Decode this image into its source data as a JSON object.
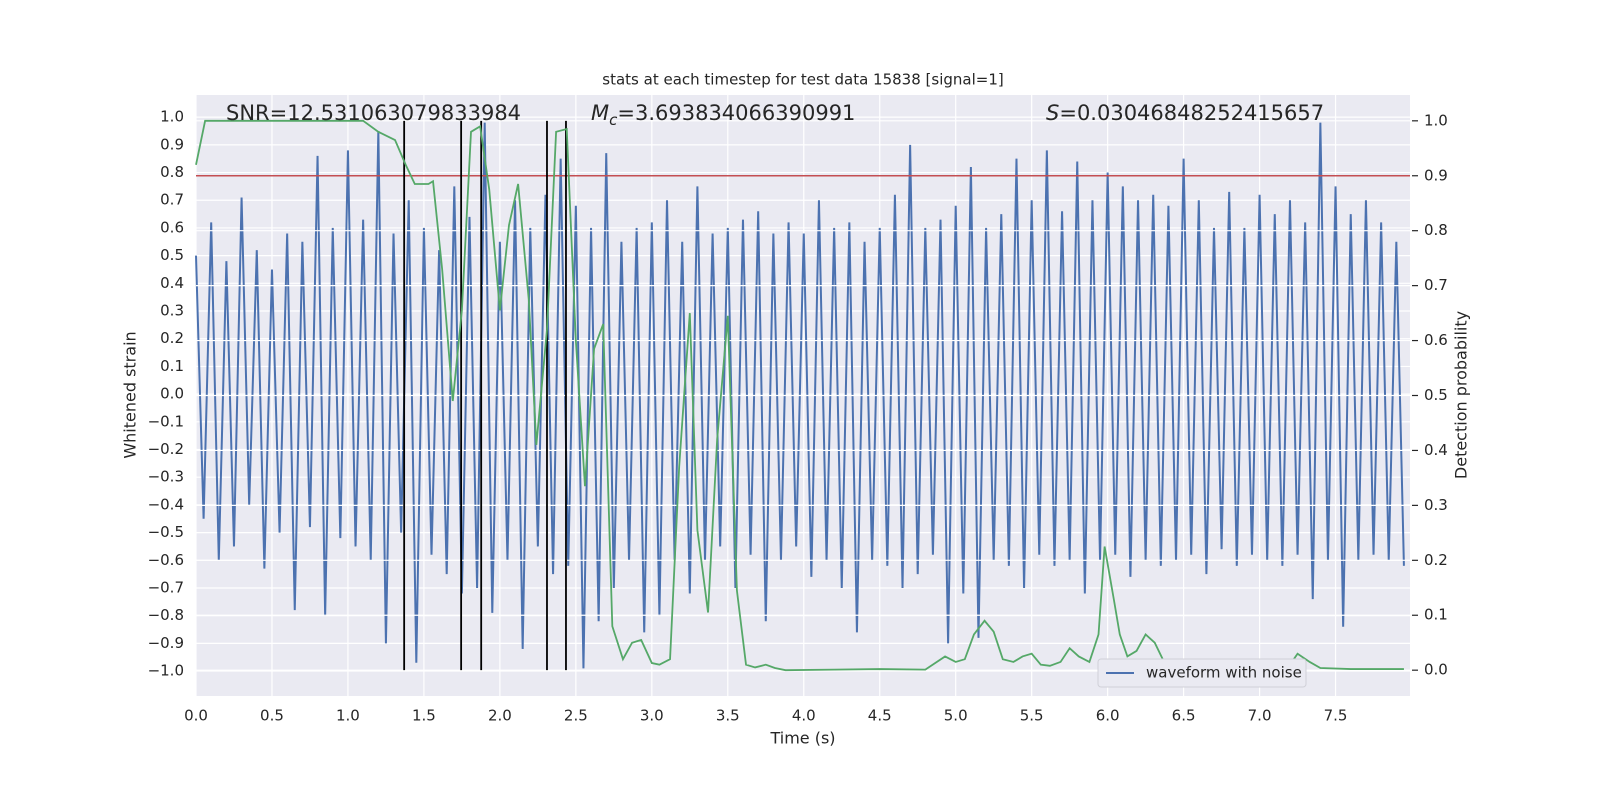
{
  "chart_data": {
    "type": "line",
    "title": "stats at each timestep for test data 15838 [signal=1]",
    "x_label": "Time (s)",
    "y_label": "Whitened strain",
    "y2_label": "Detection probability",
    "annotations": [
      {
        "text": "SNR=12.531063079833984"
      },
      {
        "symbol": "M",
        "subscript": "c",
        "text": "=3.693834066390991"
      },
      {
        "symbol": "S",
        "text": "=0.03046848252415657"
      }
    ],
    "xlim": [
      0,
      7.99
    ],
    "ylim": [
      -1.09,
      1.08
    ],
    "y2lim": [
      -0.047,
      1.047
    ],
    "xticks": [
      {
        "value": 0,
        "label": "0.0"
      },
      0.5,
      {
        "value": 1,
        "label": "1.0"
      },
      1.5,
      {
        "value": 2,
        "label": "2.0"
      },
      2.5,
      {
        "value": 3,
        "label": "3.0"
      },
      3.5,
      {
        "value": 4,
        "label": "4.0"
      },
      4.5,
      {
        "value": 5,
        "label": "5.0"
      },
      5.5,
      {
        "value": 6,
        "label": "6.0"
      },
      6.5,
      {
        "value": 7,
        "label": "7.0"
      },
      7.5
    ],
    "yticks": [
      {
        "value": -1,
        "label": "−1.0"
      },
      {
        "value": -0.9,
        "label": "−0.9"
      },
      {
        "value": -0.8,
        "label": "−0.8"
      },
      {
        "value": -0.7,
        "label": "−0.7"
      },
      {
        "value": -0.6,
        "label": "−0.6"
      },
      {
        "value": -0.5,
        "label": "−0.5"
      },
      {
        "value": -0.4,
        "label": "−0.4"
      },
      {
        "value": -0.3,
        "label": "−0.3"
      },
      {
        "value": -0.2,
        "label": "−0.2"
      },
      {
        "value": -0.1,
        "label": "−0.1"
      },
      {
        "value": 0,
        "label": "0.0"
      },
      0.1,
      0.2,
      0.3,
      0.4,
      0.5,
      0.6,
      0.7,
      0.8,
      0.9,
      {
        "value": 1,
        "label": "1.0"
      }
    ],
    "y2ticks": [
      {
        "value": 0,
        "label": "0.0"
      },
      0.1,
      0.2,
      0.3,
      0.4,
      0.5,
      0.6,
      0.7,
      0.8,
      0.9,
      {
        "value": 1,
        "label": "1.0"
      }
    ],
    "grid": true,
    "legend": "lower right",
    "series": [
      {
        "name": "waveform with noise",
        "color": "#4c72b0",
        "x": [
          0,
          0.05,
          0.1,
          0.15,
          0.2,
          0.25,
          0.3,
          0.35,
          0.4,
          0.45,
          0.5,
          0.55,
          0.6,
          0.65,
          0.7,
          0.75,
          0.8,
          0.85,
          0.9,
          0.95,
          1,
          1.05,
          1.1,
          1.15,
          1.2,
          1.25,
          1.3,
          1.35,
          1.4,
          1.45,
          1.5,
          1.55,
          1.6,
          1.65,
          1.7,
          1.75,
          1.8,
          1.85,
          1.9,
          1.95,
          2,
          2.05,
          2.1,
          2.15,
          2.2,
          2.25,
          2.3,
          2.35,
          2.4,
          2.45,
          2.5,
          2.55,
          2.6,
          2.65,
          2.7,
          2.75,
          2.8,
          2.85,
          2.9,
          2.95,
          3,
          3.05,
          3.1,
          3.15,
          3.2,
          3.25,
          3.3,
          3.35,
          3.4,
          3.45,
          3.5,
          3.55,
          3.6,
          3.65,
          3.7,
          3.75,
          3.8,
          3.85,
          3.9,
          3.95,
          4,
          4.05,
          4.1,
          4.15,
          4.2,
          4.25,
          4.3,
          4.35,
          4.4,
          4.45,
          4.5,
          4.55,
          4.6,
          4.65,
          4.7,
          4.75,
          4.8,
          4.85,
          4.9,
          4.95,
          5,
          5.05,
          5.1,
          5.15,
          5.2,
          5.25,
          5.3,
          5.35,
          5.4,
          5.45,
          5.5,
          5.55,
          5.6,
          5.65,
          5.7,
          5.75,
          5.8,
          5.85,
          5.9,
          5.95,
          6,
          6.05,
          6.1,
          6.15,
          6.2,
          6.25,
          6.3,
          6.35,
          6.4,
          6.45,
          6.5,
          6.55,
          6.6,
          6.65,
          6.7,
          6.75,
          6.8,
          6.85,
          6.9,
          6.95,
          7,
          7.05,
          7.1,
          7.15,
          7.2,
          7.25,
          7.3,
          7.35,
          7.4,
          7.45,
          7.5,
          7.55,
          7.6,
          7.65,
          7.7,
          7.75,
          7.8,
          7.85,
          7.9,
          7.95
        ],
        "values": [
          0.5,
          -0.45,
          0.62,
          -0.6,
          0.48,
          -0.55,
          0.71,
          -0.4,
          0.52,
          -0.63,
          0.45,
          -0.5,
          0.58,
          -0.78,
          0.55,
          -0.48,
          0.86,
          -0.8,
          0.6,
          -0.52,
          0.88,
          -0.55,
          0.63,
          -0.6,
          0.95,
          -0.9,
          0.58,
          -0.5,
          0.7,
          -0.97,
          0.6,
          -0.58,
          0.52,
          -0.65,
          0.75,
          -0.72,
          0.64,
          -0.7,
          0.98,
          -0.79,
          0.55,
          -0.6,
          0.7,
          -0.92,
          0.6,
          -0.55,
          0.72,
          -0.65,
          0.85,
          -0.62,
          0.68,
          -0.99,
          0.6,
          -0.82,
          0.87,
          -0.7,
          0.55,
          -0.6,
          0.6,
          -0.86,
          0.62,
          -0.8,
          0.7,
          -0.6,
          0.55,
          -0.72,
          0.75,
          -0.6,
          0.58,
          -0.55,
          0.6,
          -0.7,
          0.63,
          -0.58,
          0.66,
          -0.82,
          0.58,
          -0.6,
          0.62,
          -0.55,
          0.58,
          -0.66,
          0.7,
          -0.6,
          0.6,
          -0.7,
          0.62,
          -0.86,
          0.55,
          -0.6,
          0.6,
          -0.62,
          0.72,
          -0.7,
          0.9,
          -0.65,
          0.6,
          -0.58,
          0.63,
          -0.9,
          0.68,
          -0.72,
          0.82,
          -0.88,
          0.6,
          -0.6,
          0.65,
          -0.62,
          0.85,
          -0.7,
          0.7,
          -0.58,
          0.88,
          -0.62,
          0.66,
          -0.6,
          0.84,
          -0.72,
          0.7,
          -0.6,
          0.8,
          -0.58,
          0.75,
          -0.66,
          0.7,
          -0.6,
          0.72,
          -0.62,
          0.68,
          -0.6,
          0.85,
          -0.58,
          0.7,
          -0.65,
          0.6,
          -0.56,
          0.73,
          -0.62,
          0.6,
          -0.58,
          0.72,
          -0.6,
          0.65,
          -0.62,
          0.7,
          -0.58,
          0.62,
          -0.74,
          0.98,
          -0.6,
          0.75,
          -0.84,
          0.65,
          -0.6,
          0.7,
          -0.58,
          0.62,
          -0.6,
          0.55,
          -0.62
        ]
      },
      {
        "color": "#55a868",
        "axis": "y2",
        "x": [
          0,
          0.06,
          0.12,
          0.3,
          0.5,
          0.7,
          0.9,
          1.1,
          1.2,
          1.31,
          1.38,
          1.44,
          1.53,
          1.56,
          1.62,
          1.69,
          1.75,
          1.81,
          1.87,
          1.93,
          2,
          2.06,
          2.12,
          2.19,
          2.24,
          2.31,
          2.37,
          2.44,
          2.5,
          2.56,
          2.62,
          2.68,
          2.74,
          2.81,
          2.87,
          2.93,
          3,
          3.05,
          3.12,
          3.18,
          3.25,
          3.3,
          3.37,
          3.43,
          3.5,
          3.56,
          3.62,
          3.68,
          3.75,
          3.81,
          3.88,
          4.2,
          4.5,
          4.8,
          4.93,
          5,
          5.06,
          5.12,
          5.19,
          5.25,
          5.31,
          5.38,
          5.44,
          5.5,
          5.56,
          5.62,
          5.69,
          5.75,
          5.81,
          5.88,
          5.94,
          5.98,
          6.04,
          6.08,
          6.13,
          6.19,
          6.25,
          6.31,
          6.38,
          6.44,
          6.6,
          6.8,
          7,
          7.14,
          7.2,
          7.25,
          7.33,
          7.4,
          7.6,
          7.8,
          7.95
        ],
        "values": [
          0.92,
          1,
          1,
          1,
          1,
          1,
          1,
          1,
          0.98,
          0.965,
          0.92,
          0.885,
          0.885,
          0.89,
          0.73,
          0.49,
          0.655,
          0.98,
          0.99,
          0.875,
          0.655,
          0.81,
          0.885,
          0.675,
          0.41,
          0.62,
          0.98,
          0.985,
          0.6,
          0.335,
          0.585,
          0.63,
          0.08,
          0.02,
          0.05,
          0.055,
          0.013,
          0.01,
          0.02,
          0.37,
          0.65,
          0.255,
          0.105,
          0.42,
          0.645,
          0.145,
          0.01,
          0.005,
          0.01,
          0.004,
          0,
          0.001,
          0.002,
          0.001,
          0.025,
          0.015,
          0.02,
          0.065,
          0.09,
          0.07,
          0.02,
          0.015,
          0.025,
          0.03,
          0.01,
          0.008,
          0.015,
          0.04,
          0.025,
          0.015,
          0.065,
          0.225,
          0.13,
          0.065,
          0.025,
          0.035,
          0.065,
          0.05,
          0.01,
          0.004,
          0.003,
          0.003,
          0.01,
          0.005,
          0.01,
          0.03,
          0.015,
          0.004,
          0.002,
          0.002,
          0.002
        ]
      }
    ],
    "hlines": [
      {
        "value": 0.9,
        "axis": "y2",
        "color": "#c44e52"
      }
    ],
    "vlines": [
      {
        "x": 1.37,
        "ymin": 0,
        "ymax": 1,
        "axis": "y2",
        "color": "#000000"
      },
      {
        "x": 1.745,
        "ymin": 0,
        "ymax": 1,
        "axis": "y2",
        "color": "#000000"
      },
      {
        "x": 1.877,
        "ymin": 0,
        "ymax": 1,
        "axis": "y2",
        "color": "#000000"
      },
      {
        "x": 2.31,
        "ymin": 0,
        "ymax": 1,
        "axis": "y2",
        "color": "#000000"
      },
      {
        "x": 2.435,
        "ymin": 0,
        "ymax": 1,
        "axis": "y2",
        "color": "#000000"
      }
    ]
  }
}
